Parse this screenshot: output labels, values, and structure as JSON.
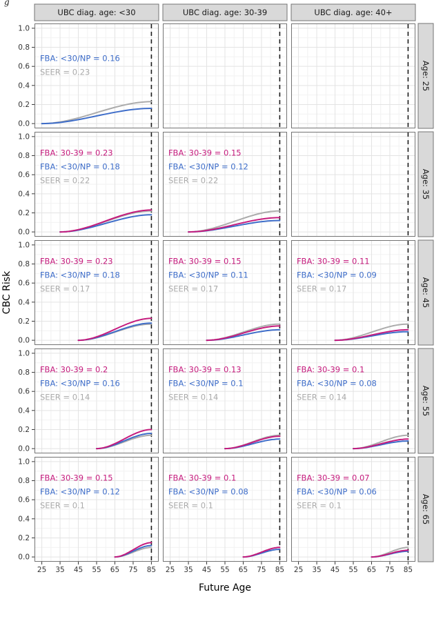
{
  "figure_label_fragment": "g",
  "axes": {
    "xlabel": "Future Age",
    "ylabel": "CBC Risk",
    "x_ticks": [
      25,
      35,
      45,
      55,
      65,
      75,
      85
    ],
    "y_tick_labels": [
      "0.0",
      "0.2",
      "0.4",
      "0.6",
      "0.8",
      "1.0"
    ],
    "x_range": [
      21,
      89
    ],
    "y_range": [
      -0.05,
      1.05
    ],
    "dashed_x": 85
  },
  "colors": {
    "fba_30_39": "#C51B7D",
    "fba_lt30_np": "#3E6DC9",
    "seer": "#ABABAB",
    "dashed_line": "#1A1A1A",
    "strip_bg": "#D9D9D9",
    "strip_text": "#1A1A1A",
    "panel_border": "#737373",
    "grid_major": "#E3E3E3",
    "grid_minor": "#F2F2F2",
    "tick_text": "#333333"
  },
  "col_strips": [
    "UBC diag. age: <30",
    "UBC diag. age: 30-39",
    "UBC diag. age: 40+"
  ],
  "row_strips": [
    "Age: 25",
    "Age: 35",
    "Age: 45",
    "Age: 55",
    "Age: 65"
  ],
  "chart_data": {
    "type": "line",
    "title": "",
    "xlabel": "Future Age",
    "ylabel": "CBC Risk",
    "xlim": [
      25,
      85
    ],
    "ylim": [
      0,
      1
    ],
    "grid": true,
    "legend_position": "none (in-panel text annotations)",
    "facet_rows": "current age (25, 35, 45, 55, 65)",
    "facet_cols": "UBC diagnosis age (<30, 30-39, 40+)",
    "dashed_vertical_line_x": 85,
    "curve_shape": "cumulative risk rising from 0 at start_age to the stated end value at age 85",
    "series_legend": [
      {
        "key": "fba_30_39",
        "name": "FBA: 30-39",
        "color": "#C51B7D"
      },
      {
        "key": "fba_lt30_np",
        "name": "FBA: <30/NP",
        "color": "#3E6DC9"
      },
      {
        "key": "seer",
        "name": "SEER",
        "color": "#ABABAB"
      }
    ],
    "facets": [
      {
        "row": 0,
        "col": 0,
        "row_label": "Age: 25",
        "col_label": "UBC diag. age: <30",
        "start_age": 25,
        "series": [
          {
            "key": "fba_lt30_np",
            "label": "FBA: <30/NP = 0.16",
            "end": 0.16
          },
          {
            "key": "seer",
            "label": "SEER = 0.23",
            "end": 0.23
          }
        ]
      },
      {
        "row": 0,
        "col": 1,
        "row_label": "Age: 25",
        "col_label": "UBC diag. age: 30-39",
        "start_age": 25,
        "series": []
      },
      {
        "row": 0,
        "col": 2,
        "row_label": "Age: 25",
        "col_label": "UBC diag. age: 40+",
        "start_age": 25,
        "series": []
      },
      {
        "row": 1,
        "col": 0,
        "row_label": "Age: 35",
        "col_label": "UBC diag. age: <30",
        "start_age": 35,
        "series": [
          {
            "key": "fba_30_39",
            "label": "FBA: 30-39 = 0.23",
            "end": 0.23
          },
          {
            "key": "fba_lt30_np",
            "label": "FBA: <30/NP = 0.18",
            "end": 0.18
          },
          {
            "key": "seer",
            "label": "SEER = 0.22",
            "end": 0.22
          }
        ]
      },
      {
        "row": 1,
        "col": 1,
        "row_label": "Age: 35",
        "col_label": "UBC diag. age: 30-39",
        "start_age": 35,
        "series": [
          {
            "key": "fba_30_39",
            "label": "FBA: 30-39 = 0.15",
            "end": 0.15
          },
          {
            "key": "fba_lt30_np",
            "label": "FBA: <30/NP = 0.12",
            "end": 0.12
          },
          {
            "key": "seer",
            "label": "SEER = 0.22",
            "end": 0.22
          }
        ]
      },
      {
        "row": 1,
        "col": 2,
        "row_label": "Age: 35",
        "col_label": "UBC diag. age: 40+",
        "start_age": 35,
        "series": []
      },
      {
        "row": 2,
        "col": 0,
        "row_label": "Age: 45",
        "col_label": "UBC diag. age: <30",
        "start_age": 45,
        "series": [
          {
            "key": "fba_30_39",
            "label": "FBA: 30-39 = 0.23",
            "end": 0.23
          },
          {
            "key": "fba_lt30_np",
            "label": "FBA: <30/NP = 0.18",
            "end": 0.18
          },
          {
            "key": "seer",
            "label": "SEER = 0.17",
            "end": 0.17
          }
        ]
      },
      {
        "row": 2,
        "col": 1,
        "row_label": "Age: 45",
        "col_label": "UBC diag. age: 30-39",
        "start_age": 45,
        "series": [
          {
            "key": "fba_30_39",
            "label": "FBA: 30-39 = 0.15",
            "end": 0.15
          },
          {
            "key": "fba_lt30_np",
            "label": "FBA: <30/NP = 0.11",
            "end": 0.11
          },
          {
            "key": "seer",
            "label": "SEER = 0.17",
            "end": 0.17
          }
        ]
      },
      {
        "row": 2,
        "col": 2,
        "row_label": "Age: 45",
        "col_label": "UBC diag. age: 40+",
        "start_age": 45,
        "series": [
          {
            "key": "fba_30_39",
            "label": "FBA: 30-39 = 0.11",
            "end": 0.11
          },
          {
            "key": "fba_lt30_np",
            "label": "FBA: <30/NP = 0.09",
            "end": 0.09
          },
          {
            "key": "seer",
            "label": "SEER = 0.17",
            "end": 0.17
          }
        ]
      },
      {
        "row": 3,
        "col": 0,
        "row_label": "Age: 55",
        "col_label": "UBC diag. age: <30",
        "start_age": 55,
        "series": [
          {
            "key": "fba_30_39",
            "label": "FBA: 30-39 = 0.2",
            "end": 0.2
          },
          {
            "key": "fba_lt30_np",
            "label": "FBA: <30/NP = 0.16",
            "end": 0.16
          },
          {
            "key": "seer",
            "label": "SEER = 0.14",
            "end": 0.14
          }
        ]
      },
      {
        "row": 3,
        "col": 1,
        "row_label": "Age: 55",
        "col_label": "UBC diag. age: 30-39",
        "start_age": 55,
        "series": [
          {
            "key": "fba_30_39",
            "label": "FBA: 30-39 = 0.13",
            "end": 0.13
          },
          {
            "key": "fba_lt30_np",
            "label": "FBA: <30/NP = 0.1",
            "end": 0.1
          },
          {
            "key": "seer",
            "label": "SEER = 0.14",
            "end": 0.14
          }
        ]
      },
      {
        "row": 3,
        "col": 2,
        "row_label": "Age: 55",
        "col_label": "UBC diag. age: 40+",
        "start_age": 55,
        "series": [
          {
            "key": "fba_30_39",
            "label": "FBA: 30-39 = 0.1",
            "end": 0.1
          },
          {
            "key": "fba_lt30_np",
            "label": "FBA: <30/NP = 0.08",
            "end": 0.08
          },
          {
            "key": "seer",
            "label": "SEER = 0.14",
            "end": 0.14
          }
        ]
      },
      {
        "row": 4,
        "col": 0,
        "row_label": "Age: 65",
        "col_label": "UBC diag. age: <30",
        "start_age": 65,
        "series": [
          {
            "key": "fba_30_39",
            "label": "FBA: 30-39 = 0.15",
            "end": 0.15
          },
          {
            "key": "fba_lt30_np",
            "label": "FBA: <30/NP = 0.12",
            "end": 0.12
          },
          {
            "key": "seer",
            "label": "SEER = 0.1",
            "end": 0.1
          }
        ]
      },
      {
        "row": 4,
        "col": 1,
        "row_label": "Age: 65",
        "col_label": "UBC diag. age: 30-39",
        "start_age": 65,
        "series": [
          {
            "key": "fba_30_39",
            "label": "FBA: 30-39 = 0.1",
            "end": 0.1
          },
          {
            "key": "fba_lt30_np",
            "label": "FBA: <30/NP = 0.08",
            "end": 0.08
          },
          {
            "key": "seer",
            "label": "SEER = 0.1",
            "end": 0.1
          }
        ]
      },
      {
        "row": 4,
        "col": 2,
        "row_label": "Age: 65",
        "col_label": "UBC diag. age: 40+",
        "start_age": 65,
        "series": [
          {
            "key": "fba_30_39",
            "label": "FBA: 30-39 = 0.07",
            "end": 0.07
          },
          {
            "key": "fba_lt30_np",
            "label": "FBA: <30/NP = 0.06",
            "end": 0.06
          },
          {
            "key": "seer",
            "label": "SEER = 0.1",
            "end": 0.1
          }
        ]
      }
    ]
  }
}
